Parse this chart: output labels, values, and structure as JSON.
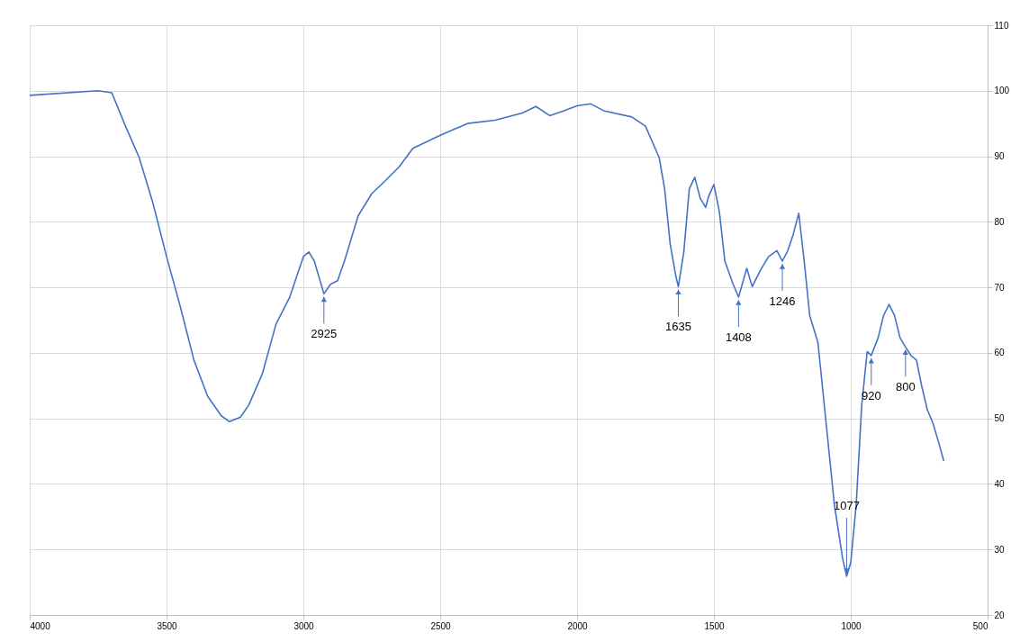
{
  "chart_data": {
    "type": "line",
    "x": [
      4000,
      3750,
      3700,
      3650,
      3600,
      3550,
      3500,
      3450,
      3400,
      3350,
      3300,
      3270,
      3230,
      3200,
      3150,
      3100,
      3050,
      3000,
      2980,
      2960,
      2925,
      2900,
      2875,
      2850,
      2800,
      2750,
      2700,
      2650,
      2600,
      2500,
      2400,
      2300,
      2200,
      2150,
      2100,
      2050,
      2000,
      1950,
      1900,
      1800,
      1750,
      1700,
      1680,
      1660,
      1640,
      1630,
      1610,
      1590,
      1570,
      1550,
      1530,
      1520,
      1500,
      1480,
      1460,
      1430,
      1410,
      1380,
      1360,
      1330,
      1300,
      1270,
      1250,
      1230,
      1210,
      1190,
      1170,
      1150,
      1120,
      1090,
      1060,
      1030,
      1015,
      1000,
      980,
      960,
      940,
      925,
      900,
      880,
      860,
      840,
      820,
      800,
      780,
      760,
      740,
      720,
      700,
      680,
      660
    ],
    "series": [
      {
        "color": "#4472c4",
        "values": [
          99.3,
          100,
          99.7,
          94.6,
          89.8,
          82.9,
          74.7,
          67.1,
          58.9,
          53.4,
          50.4,
          49.5,
          50.2,
          52,
          56.8,
          64.4,
          68.5,
          74.7,
          75.4,
          74,
          69,
          70.5,
          71,
          74,
          80.9,
          84.3,
          86.3,
          88.4,
          91.2,
          93.2,
          95,
          95.5,
          96.6,
          97.6,
          96.2,
          96.9,
          97.7,
          98,
          96.9,
          96,
          94.6,
          89.8,
          85,
          76.7,
          71.9,
          70.1,
          75.4,
          85,
          86.8,
          83.6,
          82.2,
          83.8,
          85.7,
          81.5,
          74,
          70.5,
          68.5,
          72.9,
          70.1,
          72.6,
          74.7,
          75.6,
          74,
          75.6,
          78.1,
          81.3,
          74,
          65.7,
          61.6,
          49.3,
          36.9,
          28.7,
          25.9,
          28,
          36.9,
          52,
          60.2,
          59.6,
          62.3,
          65.7,
          67.4,
          65.7,
          62.3,
          60.9,
          59.6,
          58.9,
          54.8,
          51.3,
          49.3,
          46.5,
          43.5
        ]
      }
    ],
    "xlim": [
      4000,
      500
    ],
    "xticks": [
      4000,
      3500,
      3000,
      2500,
      2000,
      1500,
      1000,
      500
    ],
    "ylim": [
      20,
      110
    ],
    "yticks": [
      20,
      30,
      40,
      50,
      60,
      70,
      80,
      90,
      100,
      110
    ],
    "grid": true,
    "line_style": "solid",
    "annotations": [
      {
        "text": "2925",
        "x": 2925,
        "y": 69
      },
      {
        "text": "1635",
        "x": 1630,
        "y": 70.1
      },
      {
        "text": "1408",
        "x": 1410,
        "y": 68.5
      },
      {
        "text": "1246",
        "x": 1250,
        "y": 74
      },
      {
        "text": "1077",
        "x": 1015,
        "y": 25.9
      },
      {
        "text": "920",
        "x": 925,
        "y": 59.6
      },
      {
        "text": "800",
        "x": 800,
        "y": 60.9
      }
    ]
  }
}
